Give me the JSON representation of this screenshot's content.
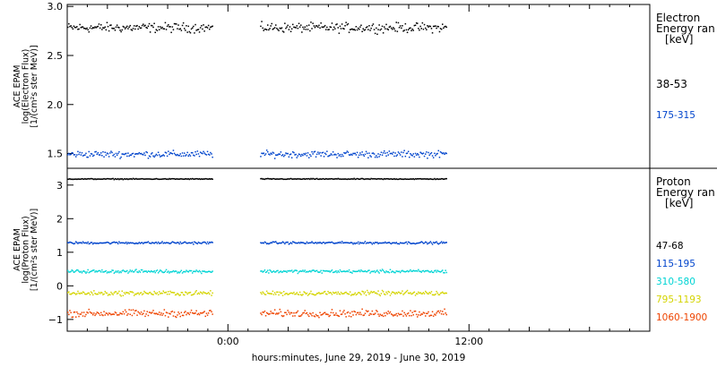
{
  "chart_data": [
    {
      "type": "scatter",
      "panel": "electron",
      "ylabel_lines": [
        "ACE EPAM",
        "log(Electron Flux)",
        "[1/(cm²s ster MeV)]"
      ],
      "ylim": [
        1.35,
        3.02
      ],
      "yticks": [
        1.5,
        2.0,
        2.5,
        3.0
      ],
      "ytick_labels": [
        "1.5",
        "2.0",
        "2.5",
        "3.0"
      ],
      "legend_title": [
        "Electron",
        "Energy ran",
        "[keV]"
      ],
      "grid": false,
      "series": [
        {
          "name": "38-53",
          "color": "#000000",
          "level": 2.79,
          "jitter": 0.07
        },
        {
          "name": "175-315",
          "color": "#0044cc",
          "level": 1.5,
          "jitter": 0.05
        }
      ]
    },
    {
      "type": "scatter",
      "panel": "proton",
      "ylabel_lines": [
        "ACE EPAM",
        "log(Proton Flux)",
        "[1/(cm²s ster MeV)]"
      ],
      "ylim": [
        -1.35,
        3.5
      ],
      "yticks": [
        -1,
        0,
        1,
        2,
        3
      ],
      "ytick_labels": [
        "−1",
        "0",
        "1",
        "2",
        "3"
      ],
      "legend_title": [
        "Proton",
        "Energy ran",
        "[keV]"
      ],
      "grid": false,
      "series": [
        {
          "name": "47-68",
          "color": "#000000",
          "level": 3.2,
          "jitter": 0.02
        },
        {
          "name": "115-195",
          "color": "#0044cc",
          "level": 1.3,
          "jitter": 0.05
        },
        {
          "name": "310-580",
          "color": "#00d4d4",
          "level": 0.45,
          "jitter": 0.07
        },
        {
          "name": "795-1193",
          "color": "#d4d400",
          "level": -0.2,
          "jitter": 0.1
        },
        {
          "name": "1060-1900",
          "color": "#ee4400",
          "level": -0.8,
          "jitter": 0.15
        }
      ]
    }
  ],
  "time_axis": {
    "label": "hours:minutes, June 29, 2019 - June 30, 2019",
    "range_hours": [
      -8,
      21
    ],
    "major_ticks": [
      0,
      12
    ],
    "major_labels": [
      "0:00",
      "12:00"
    ],
    "data_segments": [
      [
        -8,
        -0.8
      ],
      [
        1.6,
        10.9
      ]
    ]
  }
}
